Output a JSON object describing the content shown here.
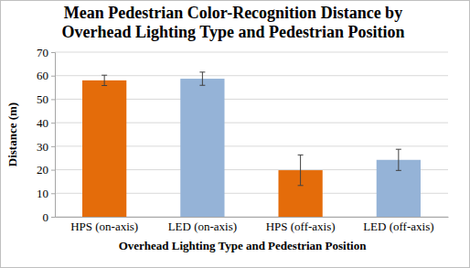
{
  "chart_data": {
    "type": "bar",
    "title": "Mean Pedestrian Color-Recognition Distance by Overhead Lighting Type and Pedestrian Position",
    "x_label": "Overhead Lighting Type and Pedestrian Position",
    "y_label": "Distance (m)",
    "categories": [
      "HPS (on-axis)",
      "LED (on-axis)",
      "HPS (off-axis)",
      "LED (off-axis)"
    ],
    "values": [
      58,
      58.7,
      19.8,
      24.2
    ],
    "errors": [
      2.2,
      2.8,
      6.5,
      4.5
    ],
    "colors": [
      "#e46c0a",
      "#95b3d7",
      "#e46c0a",
      "#95b3d7"
    ],
    "ylim": [
      0,
      70
    ],
    "yticks": [
      0,
      10,
      20,
      30,
      40,
      50,
      60,
      70
    ],
    "grid": true
  }
}
